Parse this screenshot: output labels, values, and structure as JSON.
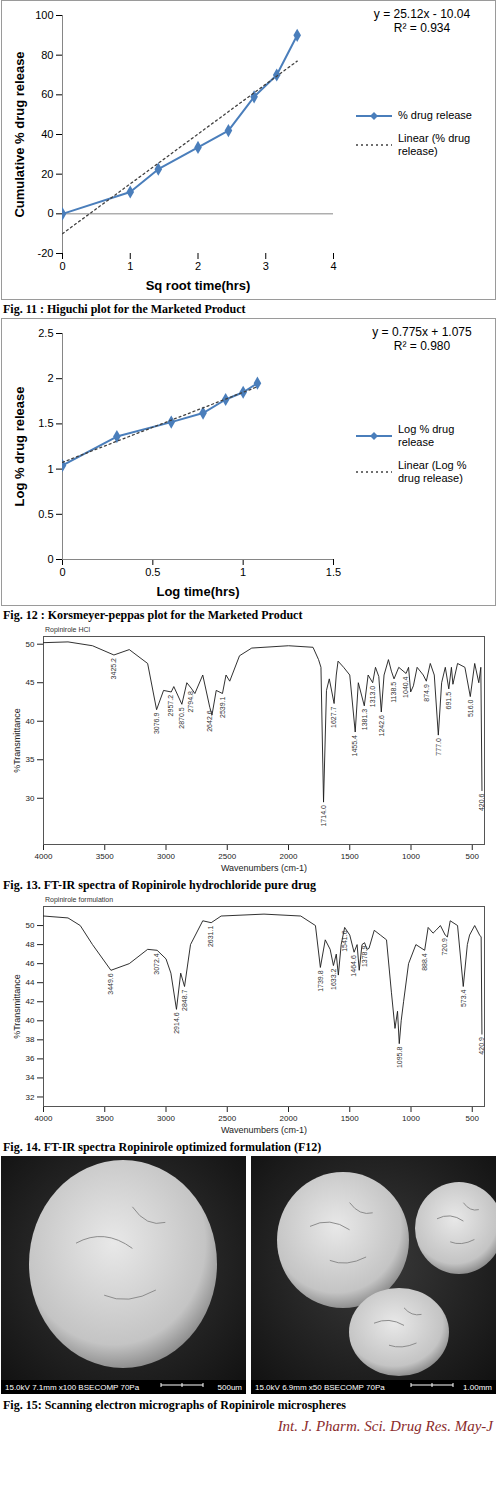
{
  "chart_data": [
    {
      "type": "line",
      "x_label": "Sq root time(hrs)",
      "y_label": "Cumulative % drug release",
      "x": [
        0,
        1,
        1.414,
        2,
        2.449,
        2.828,
        3.162,
        3.464
      ],
      "series": [
        {
          "name": "% drug release",
          "color": "#4a7ebb",
          "marker": "diamond",
          "line_style": "solid",
          "values": [
            0,
            11,
            22.5,
            33.5,
            42,
            59,
            70,
            90
          ]
        },
        {
          "name": "Linear (% drug release)",
          "color": "#404040",
          "line_style": "dotted",
          "x": [
            0,
            3.464
          ],
          "values": [
            -10,
            77
          ]
        }
      ],
      "xlim": [
        0,
        4
      ],
      "xticks": [
        0,
        1,
        2,
        3,
        4
      ],
      "ylim": [
        -20,
        100
      ],
      "yticks": [
        -20,
        0,
        20,
        40,
        60,
        80,
        100
      ],
      "annotations": [
        "y = 25.12x - 10.04",
        "R² = 0.934"
      ],
      "legend": "right",
      "grid": false
    },
    {
      "type": "line",
      "x_label": "Log time(hrs)",
      "y_label": "Log % drug release",
      "x": [
        0,
        0.301,
        0.602,
        0.778,
        0.903,
        1,
        1.079
      ],
      "series": [
        {
          "name": "Log % drug release",
          "color": "#4a7ebb",
          "marker": "diamond",
          "line_style": "solid",
          "values": [
            1.04,
            1.36,
            1.52,
            1.62,
            1.77,
            1.85,
            1.95
          ]
        },
        {
          "name": "Linear (Log % drug release)",
          "color": "#404040",
          "line_style": "dotted",
          "x": [
            0,
            1.079
          ],
          "values": [
            1.075,
            1.911
          ]
        }
      ],
      "xlim": [
        0,
        1.5
      ],
      "xticks": [
        0,
        0.5,
        1,
        1.5
      ],
      "ylim": [
        0,
        2.5
      ],
      "yticks": [
        0,
        0.5,
        1,
        1.5,
        2,
        2.5
      ],
      "annotations": [
        "y = 0.775x + 1.075",
        "R² = 0.980"
      ],
      "legend": "right",
      "grid": false
    },
    {
      "type": "spectrum",
      "title": "Ropinirole HCl",
      "x_label": "Wavenumbers (cm-1)",
      "y_label": "%Transmittance",
      "color": "#1a1a1a",
      "x": [
        4000,
        3800,
        3600,
        3425.2,
        3300,
        3150,
        3076.9,
        3020,
        2957.2,
        2936.3,
        2870.5,
        2830,
        2794.8,
        2764.4,
        2700,
        2642.6,
        2624.6,
        2590,
        2539.1,
        2510,
        2479.8,
        2400,
        2300,
        2000,
        1800,
        1754.6,
        1735,
        1714.0,
        1690,
        1667,
        1627.7,
        1610,
        1595.4,
        1550,
        1500,
        1455.4,
        1430,
        1381.3,
        1350,
        1313.0,
        1290,
        1262.8,
        1242.6,
        1220,
        1184.1,
        1160,
        1138.5,
        1100,
        1040.4,
        1020,
        1002.7,
        980.4,
        950,
        900,
        874.9,
        842.6,
        810,
        777.0,
        750,
        720,
        691.5,
        670,
        657.9,
        620,
        560,
        516.0,
        480,
        446.5,
        430,
        420.6
      ],
      "values": [
        50.2,
        50.3,
        49.8,
        48.6,
        49.3,
        47.5,
        41.5,
        44,
        43.8,
        44.5,
        42.2,
        45,
        44.3,
        43.6,
        46,
        41.8,
        40.8,
        44,
        43.6,
        46,
        45.2,
        48.5,
        49.5,
        49.8,
        49.6,
        48,
        47,
        29.5,
        44,
        45.5,
        42.3,
        46,
        47.8,
        47,
        46,
        38.6,
        45,
        42,
        46,
        45,
        47,
        45.8,
        41.2,
        46,
        48,
        46.5,
        45.5,
        47,
        46.2,
        47,
        43.8,
        44.6,
        47,
        46,
        45.2,
        47.5,
        46,
        38.2,
        45,
        47,
        44.2,
        47,
        44.8,
        47.5,
        47,
        43.2,
        47.5,
        45,
        47,
        31
      ],
      "xlim": [
        4000,
        400
      ],
      "xticks": [
        4000,
        3500,
        3000,
        2500,
        2000,
        1500,
        1000,
        500
      ],
      "ylim": [
        24,
        51
      ],
      "yticks": [
        30,
        35,
        40,
        45,
        50
      ],
      "peak_labels": [
        {
          "x": 3425.2,
          "y": 48.6,
          "text": "3425.2"
        },
        {
          "x": 3076.9,
          "y": 41.5,
          "text": "3076.9"
        },
        {
          "x": 2957.2,
          "y": 43.8,
          "text": "2957.2"
        },
        {
          "x": 2870.5,
          "y": 42.2,
          "text": "2870.5"
        },
        {
          "x": 2794.8,
          "y": 44.3,
          "text": "2794.8"
        },
        {
          "x": 2642.6,
          "y": 41.8,
          "text": "2642.6"
        },
        {
          "x": 2539.1,
          "y": 43.6,
          "text": "2539.1"
        },
        {
          "x": 1714.0,
          "y": 29.5,
          "text": "1714.0"
        },
        {
          "x": 1627.7,
          "y": 42.3,
          "text": "1627.7"
        },
        {
          "x": 1455.4,
          "y": 38.6,
          "text": "1455.4"
        },
        {
          "x": 1381.3,
          "y": 42,
          "text": "1381.3"
        },
        {
          "x": 1313.0,
          "y": 45,
          "text": "1313.0"
        },
        {
          "x": 1242.6,
          "y": 41.2,
          "text": "1242.6"
        },
        {
          "x": 1138.5,
          "y": 45.5,
          "text": "1138.5"
        },
        {
          "x": 1040.4,
          "y": 46.2,
          "text": "1040.4"
        },
        {
          "x": 874.9,
          "y": 45.2,
          "text": "874.9"
        },
        {
          "x": 777.0,
          "y": 38.2,
          "text": "777.0"
        },
        {
          "x": 691.5,
          "y": 44.2,
          "text": "691.5"
        },
        {
          "x": 516.0,
          "y": 43.2,
          "text": "516.0"
        },
        {
          "x": 420.6,
          "y": 31,
          "text": "420.6"
        }
      ],
      "grid": false
    },
    {
      "type": "spectrum",
      "title": "Ropinirole formulation",
      "x_label": "Wavenumbers (cm-1)",
      "y_label": "%Transmittance",
      "color": "#1a1a1a",
      "x": [
        4000,
        3800,
        3700,
        3600,
        3449.6,
        3300,
        3150,
        3072.4,
        3000,
        2960,
        2914.6,
        2880,
        2848.7,
        2800,
        2700,
        2631.1,
        2550,
        2200,
        1900,
        1780,
        1739.8,
        1700,
        1660,
        1633.2,
        1610,
        1593.2,
        1570,
        1541.6,
        1500,
        1464.6,
        1440,
        1422.7,
        1400,
        1378.9,
        1360,
        1343,
        1300,
        1250,
        1200,
        1160,
        1130.7,
        1110,
        1095.8,
        1080,
        1060.7,
        1020,
        960,
        888.4,
        860,
        820,
        796.3,
        760,
        720.9,
        703.0,
        680,
        620,
        573.4,
        540,
        521.7,
        480,
        440,
        427.3,
        420.9
      ],
      "values": [
        51,
        50.8,
        50,
        48,
        45.3,
        46,
        47.5,
        47.4,
        46.5,
        45,
        41.2,
        45,
        43.6,
        48,
        50.5,
        50.3,
        51,
        51.2,
        51,
        50,
        45.6,
        48.5,
        47.5,
        45.8,
        47,
        44.8,
        48,
        49.8,
        49,
        47.2,
        48,
        45.3,
        48,
        48.2,
        47.5,
        47.6,
        49.5,
        49,
        48.5,
        43,
        39.2,
        41,
        37.6,
        40,
        42,
        46,
        48,
        47.4,
        49.8,
        49.2,
        49.5,
        50,
        49,
        48.8,
        50.5,
        50,
        43.6,
        48,
        49,
        50,
        49,
        48.8,
        38.6
      ],
      "xlim": [
        4000,
        400
      ],
      "xticks": [
        4000,
        3500,
        3000,
        2500,
        2000,
        1500,
        1000,
        500
      ],
      "ylim": [
        31,
        52
      ],
      "yticks": [
        32,
        34,
        36,
        38,
        40,
        42,
        44,
        46,
        48,
        50
      ],
      "peak_labels": [
        {
          "x": 3449.6,
          "y": 45.3,
          "text": "3449.6"
        },
        {
          "x": 3072.4,
          "y": 47.4,
          "text": "3072.4"
        },
        {
          "x": 2914.6,
          "y": 41.2,
          "text": "2914.6"
        },
        {
          "x": 2848.7,
          "y": 43.6,
          "text": "2848.7"
        },
        {
          "x": 2631.1,
          "y": 50.3,
          "text": "2631.1"
        },
        {
          "x": 1739.8,
          "y": 45.6,
          "text": "1739.8"
        },
        {
          "x": 1633.2,
          "y": 45.8,
          "text": "1633.2"
        },
        {
          "x": 1541.6,
          "y": 49.8,
          "text": "1541.6"
        },
        {
          "x": 1464.6,
          "y": 47.2,
          "text": "1464.6"
        },
        {
          "x": 1378.9,
          "y": 48.2,
          "text": "1378.9"
        },
        {
          "x": 1095.8,
          "y": 37.6,
          "text": "1095.8"
        },
        {
          "x": 888.4,
          "y": 47.4,
          "text": "888.4"
        },
        {
          "x": 720.9,
          "y": 49,
          "text": "720.9"
        },
        {
          "x": 573.4,
          "y": 43.6,
          "text": "573.4"
        },
        {
          "x": 420.9,
          "y": 38.6,
          "text": "420.9"
        }
      ],
      "grid": false
    }
  ],
  "document": {
    "captions": [
      "Fig. 11 : Higuchi plot for the Marketed Product",
      "Fig. 12 : Korsmeyer-peppas plot for the Marketed Product",
      "Fig. 13. FT-IR spectra of Ropinirole hydrochloride pure drug",
      "Fig. 14. FT-IR spectra Ropinirole optimized formulation (F12)",
      "Fig. 15: Scanning electron micrographs of Ropinirole microspheres"
    ],
    "micrographs": [
      {
        "info": "15.0kV 7.1mm x100 BSECOMP 70Pa",
        "scale": "500um"
      },
      {
        "info": "15.0kV 6.9mm x50 BSECOMP 70Pa",
        "scale": "1.00mm"
      }
    ],
    "footer": "Int. J. Pharm. Sci. Drug Res. May-J"
  }
}
